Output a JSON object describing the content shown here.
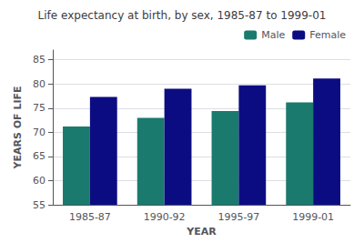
{
  "chart_data": {
    "type": "bar",
    "title": "Life expectancy at birth, by sex, 1985-87 to 1999-01",
    "xlabel": "YEAR",
    "ylabel": "YEARS OF LIFE",
    "categories": [
      "1985-87",
      "1990-92",
      "1995-97",
      "1999-01"
    ],
    "series": [
      {
        "name": "Male",
        "color": "#1a7a6e",
        "values": [
          71.2,
          73.0,
          74.4,
          76.2
        ]
      },
      {
        "name": "Female",
        "color": "#0c0c82",
        "values": [
          77.3,
          79.0,
          79.7,
          81.1
        ]
      }
    ],
    "ylim": [
      55,
      87
    ],
    "yticks": [
      55,
      60,
      65,
      70,
      75,
      80,
      85
    ],
    "grid": true,
    "legend": "upper right"
  }
}
